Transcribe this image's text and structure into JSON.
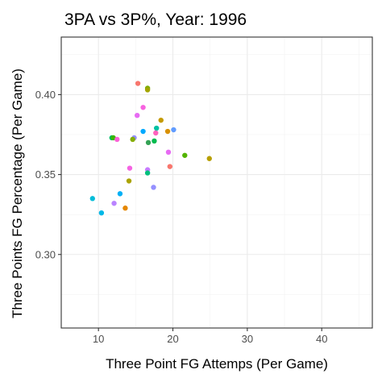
{
  "chart_data": {
    "type": "scatter",
    "title": "3PA vs 3P%, Year: 1996",
    "xlabel": "Three Point FG Attemps (Per Game)",
    "ylabel": "Three Points FG Percentage (Per Game)",
    "xlim": [
      5.0,
      46.8
    ],
    "ylim": [
      0.254,
      0.436
    ],
    "x_ticks": [
      10,
      20,
      30,
      40
    ],
    "x_tick_labels": [
      "10",
      "20",
      "30",
      "40"
    ],
    "y_ticks": [
      0.3,
      0.35,
      0.4
    ],
    "y_tick_labels": [
      "0.30",
      "0.35",
      "0.40"
    ],
    "grid": true,
    "legend": "none",
    "points": [
      {
        "x": 15.3,
        "y": 0.407,
        "color": "#f8766d"
      },
      {
        "x": 16.6,
        "y": 0.404,
        "color": "#7cae00"
      },
      {
        "x": 16.6,
        "y": 0.403,
        "color": "#a3a500"
      },
      {
        "x": 16.0,
        "y": 0.392,
        "color": "#f763e0"
      },
      {
        "x": 15.2,
        "y": 0.387,
        "color": "#e76bf3"
      },
      {
        "x": 18.4,
        "y": 0.384,
        "color": "#c49a00"
      },
      {
        "x": 17.8,
        "y": 0.379,
        "color": "#00c1a3"
      },
      {
        "x": 20.1,
        "y": 0.378,
        "color": "#619cff"
      },
      {
        "x": 19.3,
        "y": 0.377,
        "color": "#d89000"
      },
      {
        "x": 16.0,
        "y": 0.377,
        "color": "#00a9ff"
      },
      {
        "x": 17.7,
        "y": 0.376,
        "color": "#ff62bc"
      },
      {
        "x": 11.8,
        "y": 0.373,
        "color": "#00be67"
      },
      {
        "x": 12.0,
        "y": 0.373,
        "color": "#39b600"
      },
      {
        "x": 14.8,
        "y": 0.373,
        "color": "#9590ff"
      },
      {
        "x": 14.6,
        "y": 0.372,
        "color": "#85ad00"
      },
      {
        "x": 12.5,
        "y": 0.372,
        "color": "#fb61d7"
      },
      {
        "x": 17.5,
        "y": 0.371,
        "color": "#00bb4e"
      },
      {
        "x": 16.7,
        "y": 0.37,
        "color": "#35a255"
      },
      {
        "x": 19.4,
        "y": 0.364,
        "color": "#e76bf3"
      },
      {
        "x": 21.6,
        "y": 0.362,
        "color": "#53b400"
      },
      {
        "x": 24.9,
        "y": 0.36,
        "color": "#b79f00"
      },
      {
        "x": 19.6,
        "y": 0.355,
        "color": "#f8766d"
      },
      {
        "x": 14.2,
        "y": 0.354,
        "color": "#f564e3"
      },
      {
        "x": 16.6,
        "y": 0.353,
        "color": "#c77cff"
      },
      {
        "x": 16.6,
        "y": 0.351,
        "color": "#00bf7d"
      },
      {
        "x": 14.1,
        "y": 0.346,
        "color": "#aba300"
      },
      {
        "x": 17.4,
        "y": 0.342,
        "color": "#9590ff"
      },
      {
        "x": 12.9,
        "y": 0.338,
        "color": "#00b0f6"
      },
      {
        "x": 9.2,
        "y": 0.335,
        "color": "#00bcd8"
      },
      {
        "x": 12.1,
        "y": 0.332,
        "color": "#b983ff"
      },
      {
        "x": 13.6,
        "y": 0.329,
        "color": "#e58700"
      },
      {
        "x": 10.4,
        "y": 0.326,
        "color": "#00b8e7"
      }
    ]
  }
}
